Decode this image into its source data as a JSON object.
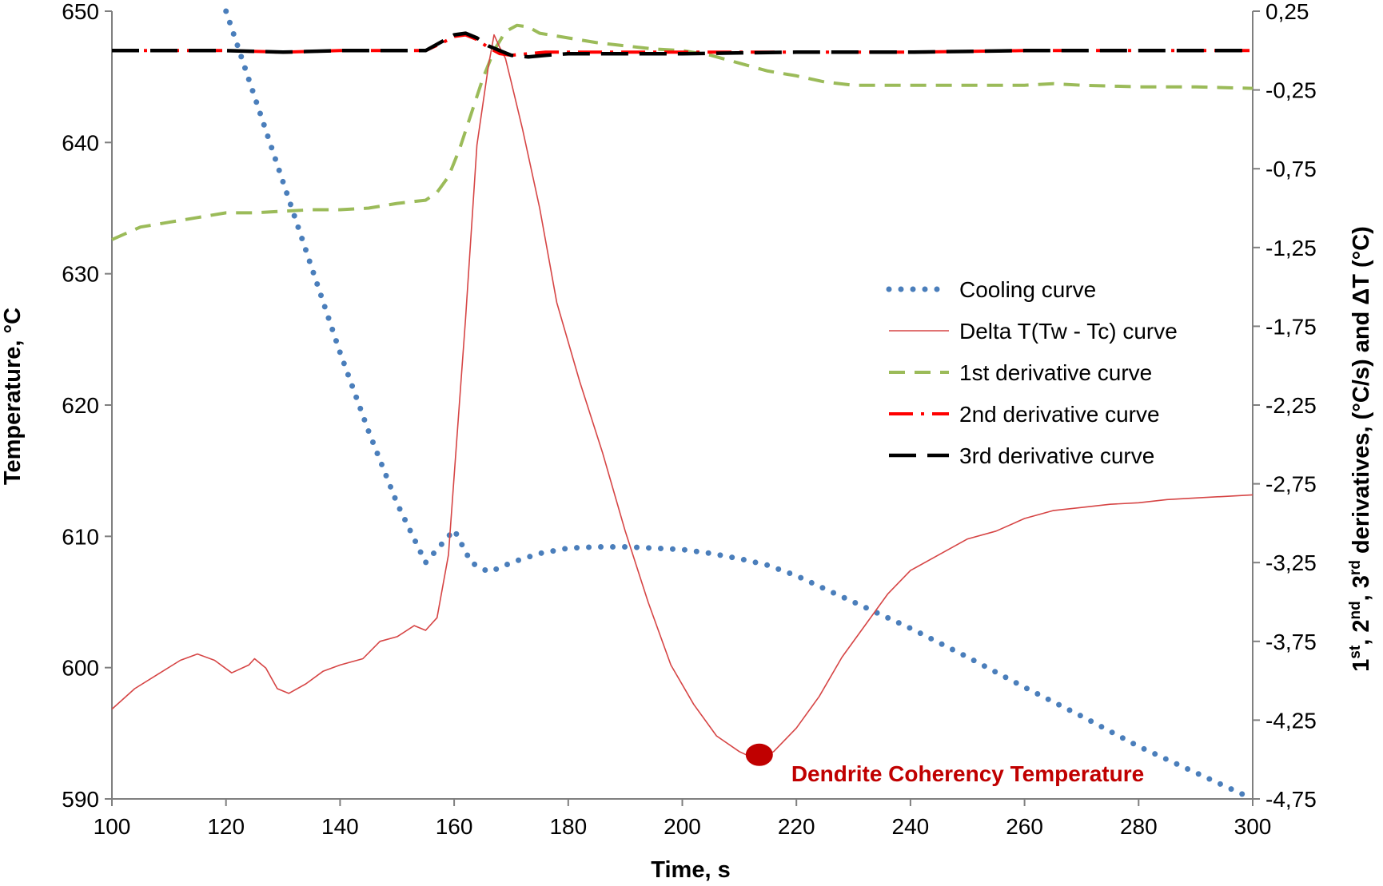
{
  "chart_data": {
    "type": "line",
    "title": "",
    "xlabel": "Time, s",
    "ylabel": "Temperature, °C",
    "y2label_parts": [
      "1",
      "st",
      ", 2",
      "nd",
      ", 3",
      "rd",
      " derivatives, (°C/s) and ΔT (°C)"
    ],
    "xlim": [
      100,
      300
    ],
    "ylim": [
      590,
      650
    ],
    "y2lim": [
      -4.75,
      0.25
    ],
    "x_ticks": [
      "100",
      "120",
      "140",
      "160",
      "180",
      "200",
      "220",
      "240",
      "260",
      "280",
      "300"
    ],
    "y_ticks": [
      "590",
      "600",
      "610",
      "620",
      "630",
      "640",
      "650"
    ],
    "y2_ticks": [
      "-4,75",
      "-4,25",
      "-3,75",
      "-3,25",
      "-2,75",
      "-2,25",
      "-1,75",
      "-1,25",
      "-0,75",
      "-0,25",
      "0,25"
    ],
    "grid": false,
    "legend_position": "right-middle",
    "series": [
      {
        "name": "Cooling curve",
        "axis": "left",
        "color": "#4a7ebb",
        "style": "dotted",
        "x": [
          120,
          125,
          130,
          135,
          140,
          145,
          150,
          155,
          160,
          163,
          166,
          168,
          170,
          175,
          180,
          185,
          190,
          195,
          200,
          205,
          210,
          215,
          220,
          225,
          230,
          240,
          250,
          260,
          270,
          280,
          290,
          300
        ],
        "y": [
          650,
          643.5,
          637,
          630.5,
          624,
          618,
          612.5,
          608,
          610.5,
          608,
          607.3,
          607.6,
          608,
          608.7,
          609.1,
          609.2,
          609.2,
          609.1,
          609,
          608.7,
          608.3,
          607.8,
          607,
          606,
          605,
          603,
          600.8,
          598.5,
          596.3,
          594,
          592,
          590
        ]
      },
      {
        "name": "Delta T(Tw - Tc) curve",
        "axis": "right",
        "color": "#d64545",
        "style": "solid-thin",
        "x": [
          100,
          104,
          108,
          112,
          115,
          118,
          121,
          124,
          125,
          127,
          129,
          131,
          134,
          137,
          140,
          144,
          147,
          150,
          153,
          155,
          157,
          159,
          160,
          162,
          164,
          166,
          167,
          168,
          169,
          170,
          172,
          175,
          178,
          182,
          186,
          190,
          194,
          198,
          202,
          206,
          210,
          213,
          216,
          220,
          224,
          228,
          232,
          236,
          240,
          245,
          250,
          255,
          260,
          265,
          270,
          275,
          280,
          285,
          290,
          295,
          300
        ],
        "y": [
          -4.18,
          -4.05,
          -3.96,
          -3.87,
          -3.83,
          -3.87,
          -3.95,
          -3.9,
          -3.86,
          -3.92,
          -4.05,
          -4.08,
          -4.02,
          -3.94,
          -3.9,
          -3.86,
          -3.75,
          -3.72,
          -3.65,
          -3.68,
          -3.6,
          -3.2,
          -2.7,
          -1.7,
          -0.6,
          -0.1,
          0.1,
          0.02,
          -0.05,
          -0.2,
          -0.5,
          -1.0,
          -1.6,
          -2.1,
          -2.55,
          -3.05,
          -3.5,
          -3.9,
          -4.15,
          -4.35,
          -4.45,
          -4.5,
          -4.45,
          -4.3,
          -4.1,
          -3.85,
          -3.65,
          -3.45,
          -3.3,
          -3.2,
          -3.1,
          -3.05,
          -2.97,
          -2.92,
          -2.9,
          -2.88,
          -2.87,
          -2.85,
          -2.84,
          -2.83,
          -2.82
        ]
      },
      {
        "name": "1st derivative curve",
        "axis": "right",
        "color": "#9bbb59",
        "style": "dashed",
        "x": [
          100,
          105,
          110,
          115,
          120,
          125,
          130,
          135,
          140,
          145,
          150,
          155,
          157,
          159,
          161,
          163,
          165,
          167,
          169,
          171,
          173,
          175,
          180,
          185,
          190,
          195,
          200,
          205,
          210,
          215,
          220,
          225,
          230,
          240,
          250,
          260,
          265,
          270,
          280,
          290,
          300
        ],
        "y": [
          -1.2,
          -1.12,
          -1.09,
          -1.06,
          -1.03,
          -1.03,
          -1.02,
          -1.01,
          -1.01,
          -1.0,
          -0.97,
          -0.95,
          -0.9,
          -0.8,
          -0.62,
          -0.4,
          -0.18,
          0.0,
          0.12,
          0.16,
          0.15,
          0.11,
          0.08,
          0.05,
          0.03,
          0.01,
          0.0,
          -0.03,
          -0.08,
          -0.13,
          -0.16,
          -0.2,
          -0.22,
          -0.22,
          -0.22,
          -0.22,
          -0.21,
          -0.22,
          -0.23,
          -0.23,
          -0.24
        ]
      },
      {
        "name": "2nd derivative curve",
        "axis": "right",
        "color": "#ff0000",
        "style": "dash-dot",
        "x": [
          100,
          110,
          120,
          130,
          140,
          150,
          155,
          158,
          160,
          162,
          164,
          166,
          168,
          170,
          173,
          176,
          180,
          190,
          200,
          220,
          240,
          260,
          280,
          300
        ],
        "y": [
          0.0,
          0.0,
          0.0,
          -0.01,
          0.0,
          0.0,
          0.0,
          0.05,
          0.09,
          0.1,
          0.07,
          0.02,
          -0.02,
          -0.03,
          -0.02,
          -0.01,
          -0.01,
          -0.01,
          -0.01,
          -0.01,
          -0.01,
          0.0,
          0.0,
          0.0
        ]
      },
      {
        "name": "3rd derivative curve",
        "axis": "right",
        "color": "#000000",
        "style": "long-dash",
        "x": [
          100,
          110,
          120,
          130,
          140,
          150,
          155,
          158,
          160,
          162,
          164,
          166,
          168,
          170,
          173,
          176,
          180,
          190,
          200,
          220,
          240,
          260,
          280,
          300
        ],
        "y": [
          0.0,
          0.0,
          0.0,
          -0.01,
          0.0,
          0.0,
          0.0,
          0.06,
          0.1,
          0.11,
          0.08,
          0.03,
          0.0,
          -0.03,
          -0.04,
          -0.03,
          -0.02,
          -0.02,
          -0.02,
          -0.01,
          -0.01,
          0.0,
          0.0,
          0.0
        ]
      }
    ],
    "annotations": [
      {
        "text": "Dendrite Coherency Temperature",
        "color": "#c00000",
        "marker_x": 213.5,
        "marker_y2": -4.47
      }
    ]
  }
}
